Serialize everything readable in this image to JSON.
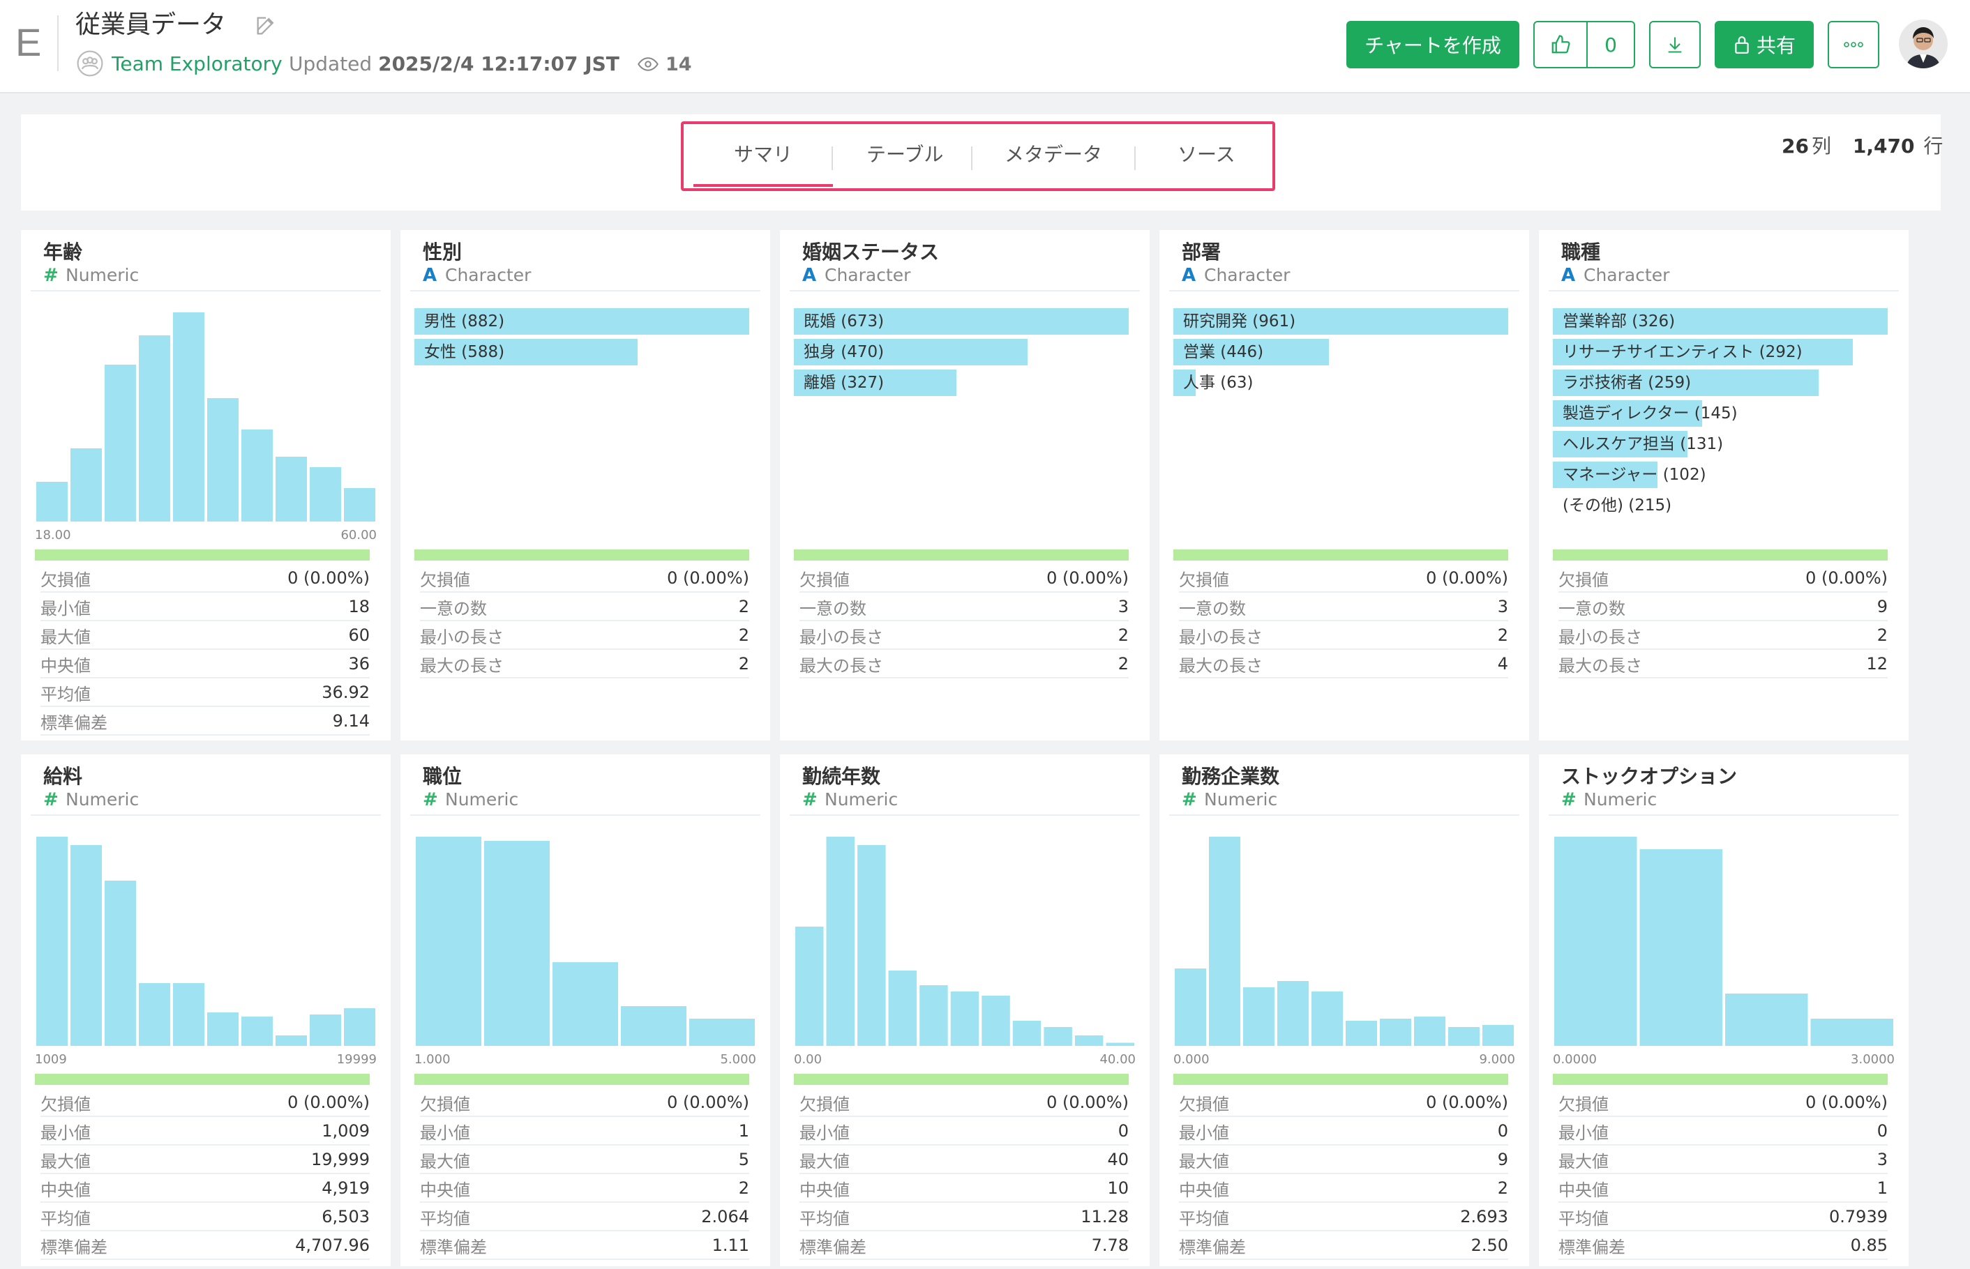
{
  "header": {
    "logo_letter": "E",
    "title": "従業員データ",
    "team": "Team Exploratory",
    "updated_prefix": "Updated",
    "updated_at": "2025/2/4 12:17:07 JST",
    "views": "14",
    "create_chart_label": "チャートを作成",
    "like_count": "0",
    "share_label": "共有",
    "accent_color": "#1eaa5d"
  },
  "tabs": {
    "items": [
      "サマリ",
      "テーブル",
      "メタデータ",
      "ソース"
    ],
    "active": "サマリ",
    "highlight_color": "#e83c6c"
  },
  "counts": {
    "columns": "26",
    "columns_unit": "列",
    "rows": "1,470",
    "rows_unit": "行"
  },
  "columns": [
    {
      "name": "年齢",
      "type": "Numeric",
      "type_icon": "#",
      "histogram": [
        0.19,
        0.35,
        0.75,
        0.89,
        1.0,
        0.59,
        0.44,
        0.31,
        0.26,
        0.16
      ],
      "x_min": "18.00",
      "x_max": "60.00",
      "stats": [
        {
          "k": "欠損値",
          "v": "0 (0.00%)"
        },
        {
          "k": "最小値",
          "v": "18"
        },
        {
          "k": "最大値",
          "v": "60"
        },
        {
          "k": "中央値",
          "v": "36"
        },
        {
          "k": "平均値",
          "v": "36.92"
        },
        {
          "k": "標準偏差",
          "v": "9.14"
        }
      ]
    },
    {
      "name": "性別",
      "type": "Character",
      "type_icon": "A",
      "categories": [
        {
          "label": "男性 (882)",
          "share": 1.0
        },
        {
          "label": "女性 (588)",
          "share": 0.667
        }
      ],
      "stats": [
        {
          "k": "欠損値",
          "v": "0 (0.00%)"
        },
        {
          "k": "一意の数",
          "v": "2"
        },
        {
          "k": "最小の長さ",
          "v": "2"
        },
        {
          "k": "最大の長さ",
          "v": "2"
        }
      ]
    },
    {
      "name": "婚姻ステータス",
      "type": "Character",
      "type_icon": "A",
      "categories": [
        {
          "label": "既婚 (673)",
          "share": 1.0
        },
        {
          "label": "独身 (470)",
          "share": 0.698
        },
        {
          "label": "離婚 (327)",
          "share": 0.486
        }
      ],
      "stats": [
        {
          "k": "欠損値",
          "v": "0 (0.00%)"
        },
        {
          "k": "一意の数",
          "v": "3"
        },
        {
          "k": "最小の長さ",
          "v": "2"
        },
        {
          "k": "最大の長さ",
          "v": "2"
        }
      ]
    },
    {
      "name": "部署",
      "type": "Character",
      "type_icon": "A",
      "categories": [
        {
          "label": "研究開発 (961)",
          "share": 1.0
        },
        {
          "label": "営業 (446)",
          "share": 0.464
        },
        {
          "label": "人事 (63)",
          "share": 0.066
        }
      ],
      "stats": [
        {
          "k": "欠損値",
          "v": "0 (0.00%)"
        },
        {
          "k": "一意の数",
          "v": "3"
        },
        {
          "k": "最小の長さ",
          "v": "2"
        },
        {
          "k": "最大の長さ",
          "v": "4"
        }
      ]
    },
    {
      "name": "職種",
      "type": "Character",
      "type_icon": "A",
      "categories": [
        {
          "label": "営業幹部 (326)",
          "share": 1.0
        },
        {
          "label": "リサーチサイエンティスト (292)",
          "share": 0.896
        },
        {
          "label": "ラボ技術者 (259)",
          "share": 0.794
        },
        {
          "label": "製造ディレクター (145)",
          "share": 0.445
        },
        {
          "label": "ヘルスケア担当 (131)",
          "share": 0.402
        },
        {
          "label": "マネージャー (102)",
          "share": 0.313
        },
        {
          "label": "(その他) (215)",
          "share": 0
        }
      ],
      "stats": [
        {
          "k": "欠損値",
          "v": "0 (0.00%)"
        },
        {
          "k": "一意の数",
          "v": "9"
        },
        {
          "k": "最小の長さ",
          "v": "2"
        },
        {
          "k": "最大の長さ",
          "v": "12"
        }
      ]
    },
    {
      "name": "給料",
      "type": "Numeric",
      "type_icon": "#",
      "histogram": [
        1.0,
        0.96,
        0.79,
        0.3,
        0.3,
        0.16,
        0.14,
        0.05,
        0.15,
        0.18
      ],
      "x_min": "1009",
      "x_max": "19999",
      "stats": [
        {
          "k": "欠損値",
          "v": "0 (0.00%)"
        },
        {
          "k": "最小値",
          "v": "1,009"
        },
        {
          "k": "最大値",
          "v": "19,999"
        },
        {
          "k": "中央値",
          "v": "4,919"
        },
        {
          "k": "平均値",
          "v": "6,503"
        },
        {
          "k": "標準偏差",
          "v": "4,707.96"
        }
      ]
    },
    {
      "name": "職位",
      "type": "Numeric",
      "type_icon": "#",
      "histogram": [
        1.0,
        0.98,
        0.4,
        0.19,
        0.13
      ],
      "x_min": "1.000",
      "x_max": "5.000",
      "stats": [
        {
          "k": "欠損値",
          "v": "0 (0.00%)"
        },
        {
          "k": "最小値",
          "v": "1"
        },
        {
          "k": "最大値",
          "v": "5"
        },
        {
          "k": "中央値",
          "v": "2"
        },
        {
          "k": "平均値",
          "v": "2.064"
        },
        {
          "k": "標準偏差",
          "v": "1.11"
        }
      ]
    },
    {
      "name": "勤続年数",
      "type": "Numeric",
      "type_icon": "#",
      "histogram": [
        0.57,
        1.0,
        0.96,
        0.36,
        0.29,
        0.26,
        0.24,
        0.12,
        0.09,
        0.05,
        0.015
      ],
      "x_min": "0.00",
      "x_max": "40.00",
      "stats": [
        {
          "k": "欠損値",
          "v": "0 (0.00%)"
        },
        {
          "k": "最小値",
          "v": "0"
        },
        {
          "k": "最大値",
          "v": "40"
        },
        {
          "k": "中央値",
          "v": "10"
        },
        {
          "k": "平均値",
          "v": "11.28"
        },
        {
          "k": "標準偏差",
          "v": "7.78"
        }
      ]
    },
    {
      "name": "勤務企業数",
      "type": "Numeric",
      "type_icon": "#",
      "histogram": [
        0.37,
        1.0,
        0.28,
        0.31,
        0.26,
        0.12,
        0.13,
        0.14,
        0.09,
        0.1
      ],
      "x_min": "0.000",
      "x_max": "9.000",
      "stats": [
        {
          "k": "欠損値",
          "v": "0 (0.00%)"
        },
        {
          "k": "最小値",
          "v": "0"
        },
        {
          "k": "最大値",
          "v": "9"
        },
        {
          "k": "中央値",
          "v": "2"
        },
        {
          "k": "平均値",
          "v": "2.693"
        },
        {
          "k": "標準偏差",
          "v": "2.50"
        }
      ]
    },
    {
      "name": "ストックオプション",
      "type": "Numeric",
      "type_icon": "#",
      "histogram": [
        1.0,
        0.94,
        0.25,
        0.13
      ],
      "x_min": "0.0000",
      "x_max": "3.0000",
      "stats": [
        {
          "k": "欠損値",
          "v": "0 (0.00%)"
        },
        {
          "k": "最小値",
          "v": "0"
        },
        {
          "k": "最大値",
          "v": "3"
        },
        {
          "k": "中央値",
          "v": "1"
        },
        {
          "k": "平均値",
          "v": "0.7939"
        },
        {
          "k": "標準偏差",
          "v": "0.85"
        }
      ]
    }
  ]
}
